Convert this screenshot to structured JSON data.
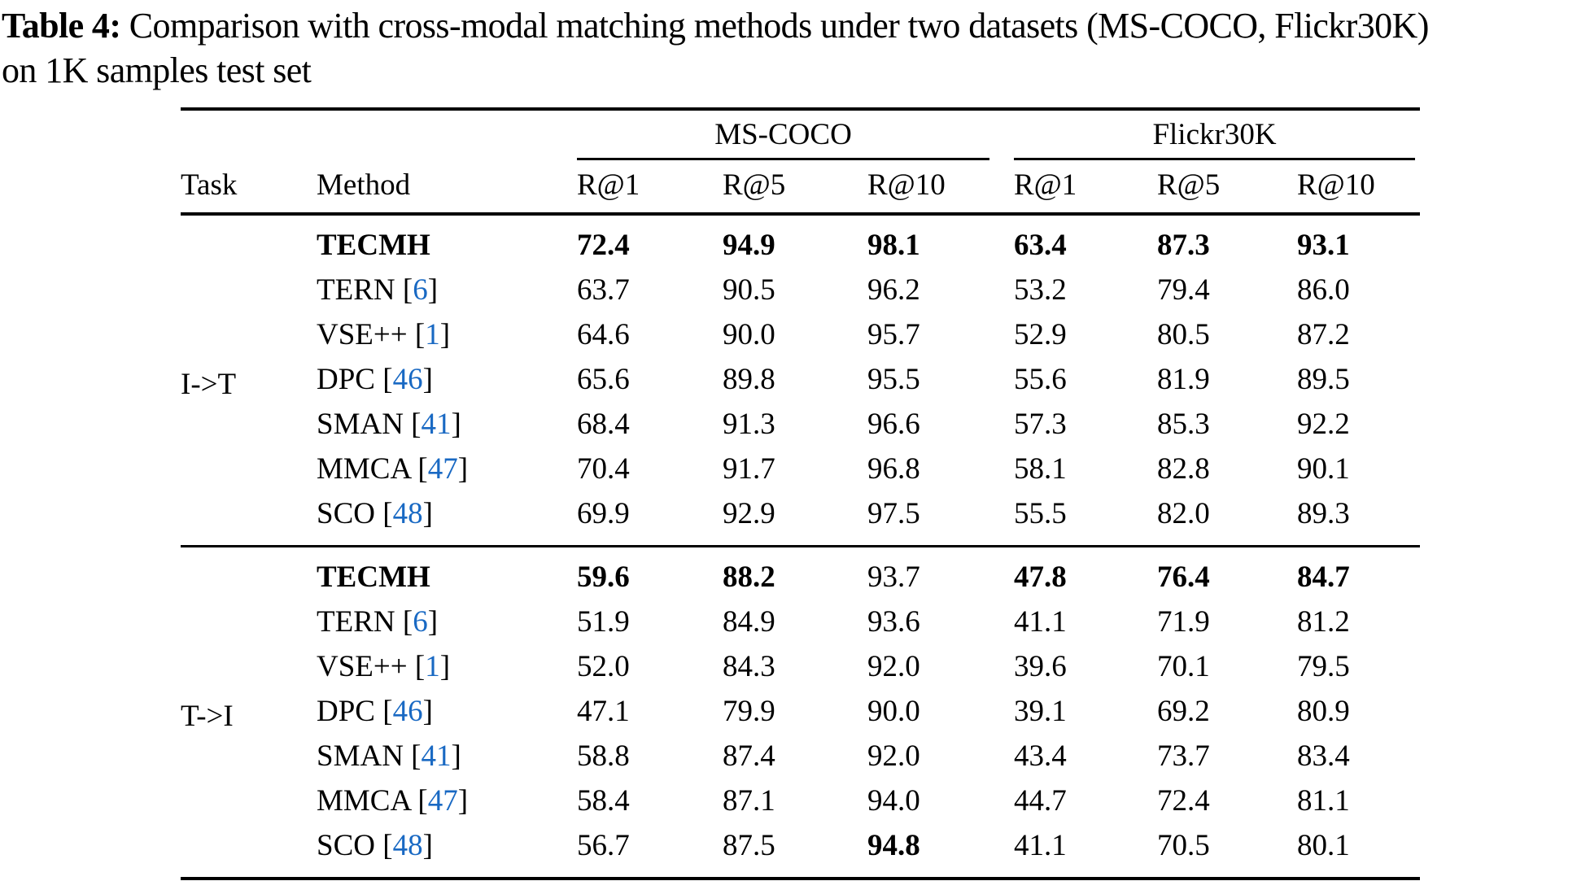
{
  "caption": {
    "label": "Table 4:",
    "line1_rest": " Comparison with cross-modal matching methods under two datasets (MS-COCO, Flickr30K)",
    "line2": "on 1K samples test set"
  },
  "colors": {
    "citation_blue": "#1969c3",
    "text": "#000000",
    "background": "#ffffff"
  },
  "table": {
    "header": {
      "task": "Task",
      "method": "Method",
      "groups": [
        {
          "label": "MS-COCO",
          "cols": [
            "R@1",
            "R@5",
            "R@10"
          ]
        },
        {
          "label": "Flickr30K",
          "cols": [
            "R@1",
            "R@5",
            "R@10"
          ]
        }
      ]
    },
    "sections": [
      {
        "task": "I->T",
        "rows": [
          {
            "method": "TECMH",
            "cite": "",
            "method_bold": true,
            "values": [
              "72.4",
              "94.9",
              "98.1",
              "63.4",
              "87.3",
              "93.1"
            ],
            "bold": [
              1,
              1,
              1,
              1,
              1,
              1
            ]
          },
          {
            "method": "TERN",
            "cite": "6",
            "method_bold": false,
            "values": [
              "63.7",
              "90.5",
              "96.2",
              "53.2",
              "79.4",
              "86.0"
            ],
            "bold": [
              0,
              0,
              0,
              0,
              0,
              0
            ]
          },
          {
            "method": "VSE++",
            "cite": "1",
            "method_bold": false,
            "values": [
              "64.6",
              "90.0",
              "95.7",
              "52.9",
              "80.5",
              "87.2"
            ],
            "bold": [
              0,
              0,
              0,
              0,
              0,
              0
            ]
          },
          {
            "method": "DPC",
            "cite": "46",
            "method_bold": false,
            "values": [
              "65.6",
              "89.8",
              "95.5",
              "55.6",
              "81.9",
              "89.5"
            ],
            "bold": [
              0,
              0,
              0,
              0,
              0,
              0
            ]
          },
          {
            "method": "SMAN",
            "cite": "41",
            "method_bold": false,
            "values": [
              "68.4",
              "91.3",
              "96.6",
              "57.3",
              "85.3",
              "92.2"
            ],
            "bold": [
              0,
              0,
              0,
              0,
              0,
              0
            ]
          },
          {
            "method": "MMCA",
            "cite": "47",
            "method_bold": false,
            "values": [
              "70.4",
              "91.7",
              "96.8",
              "58.1",
              "82.8",
              "90.1"
            ],
            "bold": [
              0,
              0,
              0,
              0,
              0,
              0
            ]
          },
          {
            "method": "SCO",
            "cite": "48",
            "method_bold": false,
            "values": [
              "69.9",
              "92.9",
              "97.5",
              "55.5",
              "82.0",
              "89.3"
            ],
            "bold": [
              0,
              0,
              0,
              0,
              0,
              0
            ]
          }
        ]
      },
      {
        "task": "T->I",
        "rows": [
          {
            "method": "TECMH",
            "cite": "",
            "method_bold": true,
            "values": [
              "59.6",
              "88.2",
              "93.7",
              "47.8",
              "76.4",
              "84.7"
            ],
            "bold": [
              1,
              1,
              0,
              1,
              1,
              1
            ]
          },
          {
            "method": "TERN",
            "cite": "6",
            "method_bold": false,
            "values": [
              "51.9",
              "84.9",
              "93.6",
              "41.1",
              "71.9",
              "81.2"
            ],
            "bold": [
              0,
              0,
              0,
              0,
              0,
              0
            ]
          },
          {
            "method": "VSE++",
            "cite": "1",
            "method_bold": false,
            "values": [
              "52.0",
              "84.3",
              "92.0",
              "39.6",
              "70.1",
              "79.5"
            ],
            "bold": [
              0,
              0,
              0,
              0,
              0,
              0
            ]
          },
          {
            "method": "DPC",
            "cite": "46",
            "method_bold": false,
            "values": [
              "47.1",
              "79.9",
              "90.0",
              "39.1",
              "69.2",
              "80.9"
            ],
            "bold": [
              0,
              0,
              0,
              0,
              0,
              0
            ]
          },
          {
            "method": "SMAN",
            "cite": "41",
            "method_bold": false,
            "values": [
              "58.8",
              "87.4",
              "92.0",
              "43.4",
              "73.7",
              "83.4"
            ],
            "bold": [
              0,
              0,
              0,
              0,
              0,
              0
            ]
          },
          {
            "method": "MMCA",
            "cite": "47",
            "method_bold": false,
            "values": [
              "58.4",
              "87.1",
              "94.0",
              "44.7",
              "72.4",
              "81.1"
            ],
            "bold": [
              0,
              0,
              0,
              0,
              0,
              0
            ]
          },
          {
            "method": "SCO",
            "cite": "48",
            "method_bold": false,
            "values": [
              "56.7",
              "87.5",
              "94.8",
              "41.1",
              "70.5",
              "80.1"
            ],
            "bold": [
              0,
              0,
              1,
              0,
              0,
              0
            ]
          }
        ]
      }
    ]
  }
}
